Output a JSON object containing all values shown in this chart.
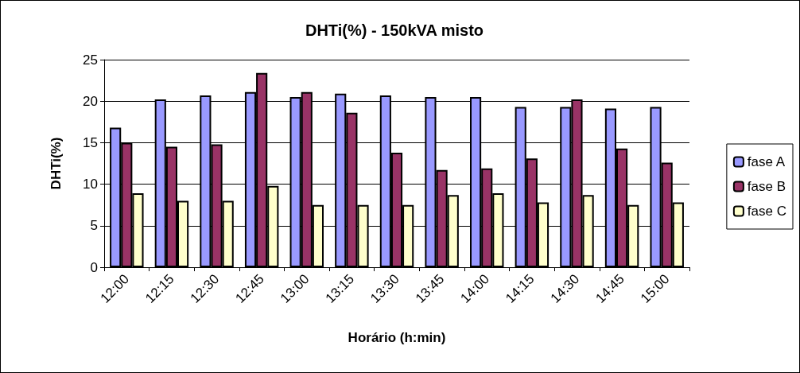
{
  "chart_data": {
    "type": "bar",
    "title": "DHTi(%) - 150kVA misto",
    "xlabel": "Horário (h:min)",
    "ylabel": "DHTi(%)",
    "categories": [
      "12:00",
      "12:15",
      "12:30",
      "12:45",
      "13:00",
      "13:15",
      "13:30",
      "13:45",
      "14:00",
      "14:15",
      "14:30",
      "14:45",
      "15:00"
    ],
    "series": [
      {
        "name": "fase A",
        "color": "#9999ff",
        "values": [
          16.8,
          20.2,
          20.7,
          21.1,
          20.5,
          20.9,
          20.7,
          20.5,
          20.5,
          19.3,
          19.3,
          19.1,
          19.3
        ]
      },
      {
        "name": "fase B",
        "color": "#993366",
        "values": [
          15.0,
          14.5,
          14.8,
          23.4,
          21.1,
          18.6,
          13.8,
          11.7,
          11.9,
          13.1,
          20.2,
          14.3,
          12.6
        ]
      },
      {
        "name": "fase C",
        "color": "#ffffcc",
        "values": [
          8.9,
          8.0,
          8.0,
          9.8,
          7.5,
          7.5,
          7.5,
          8.7,
          8.9,
          7.8,
          8.7,
          7.5,
          7.8
        ]
      }
    ],
    "ylim": [
      0,
      25
    ],
    "yticks": [
      0,
      5,
      10,
      15,
      20,
      25
    ],
    "grid": "y",
    "legend": "right"
  }
}
